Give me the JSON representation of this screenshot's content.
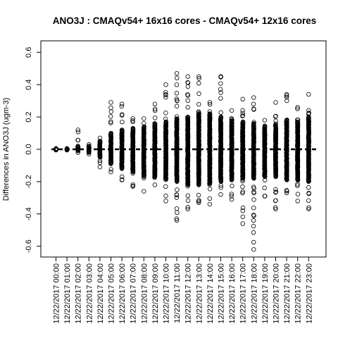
{
  "chart_data": {
    "type": "scatter",
    "title": "ANO3J : CMAQv54+ 16x16 cores - CMAQv54+ 12x16 cores",
    "xlabel": "",
    "ylabel": "Differences in ANO3J (ugm-3)",
    "ylim": [
      -0.6,
      0.6
    ],
    "yticks": [
      -0.6,
      -0.4,
      -0.2,
      0.0,
      0.2,
      0.4,
      0.6
    ],
    "ytick_labels": [
      "-0.6",
      "-0.4",
      "-0.2",
      "0.0",
      "0.2",
      "0.4",
      "0.6"
    ],
    "categories": [
      "12/22/2017 00:00",
      "12/22/2017 01:00",
      "12/22/2017 02:00",
      "12/22/2017 03:00",
      "12/22/2017 04:00",
      "12/22/2017 05:00",
      "12/22/2017 06:00",
      "12/22/2017 07:00",
      "12/22/2017 08:00",
      "12/22/2017 09:00",
      "12/22/2017 10:00",
      "12/22/2017 11:00",
      "12/22/2017 12:00",
      "12/22/2017 13:00",
      "12/22/2017 14:00",
      "12/22/2017 15:00",
      "12/22/2017 16:00",
      "12/22/2017 17:00",
      "12/22/2017 18:00",
      "12/22/2017 19:00",
      "12/22/2017 20:00",
      "12/22/2017 21:00",
      "12/22/2017 22:00",
      "12/22/2017 23:00"
    ],
    "max_values": [
      0.005,
      0.005,
      0.12,
      0.03,
      0.07,
      0.29,
      0.28,
      0.19,
      0.19,
      0.28,
      0.4,
      0.47,
      0.45,
      0.45,
      0.29,
      0.45,
      0.24,
      0.31,
      0.32,
      0.18,
      0.29,
      0.34,
      0.26,
      0.34
    ],
    "min_values": [
      -0.005,
      -0.005,
      -0.02,
      -0.03,
      -0.11,
      -0.14,
      -0.19,
      -0.23,
      -0.26,
      -0.22,
      -0.32,
      -0.44,
      -0.37,
      -0.33,
      -0.34,
      -0.28,
      -0.31,
      -0.46,
      -0.62,
      -0.29,
      -0.37,
      -0.27,
      -0.32,
      -0.37
    ],
    "dense_upper": [
      0.004,
      0.004,
      0.02,
      0.02,
      0.05,
      0.1,
      0.12,
      0.13,
      0.14,
      0.16,
      0.17,
      0.19,
      0.2,
      0.22,
      0.22,
      0.2,
      0.18,
      0.17,
      0.16,
      0.14,
      0.15,
      0.18,
      0.17,
      0.2
    ],
    "dense_lower": [
      -0.004,
      -0.004,
      -0.01,
      -0.02,
      -0.05,
      -0.09,
      -0.12,
      -0.14,
      -0.16,
      -0.17,
      -0.18,
      -0.2,
      -0.22,
      -0.22,
      -0.21,
      -0.2,
      -0.19,
      -0.18,
      -0.18,
      -0.17,
      -0.17,
      -0.19,
      -0.19,
      -0.2
    ],
    "reference_line": 0.0,
    "marker": "open-circle",
    "grid": false,
    "legend": "none"
  }
}
